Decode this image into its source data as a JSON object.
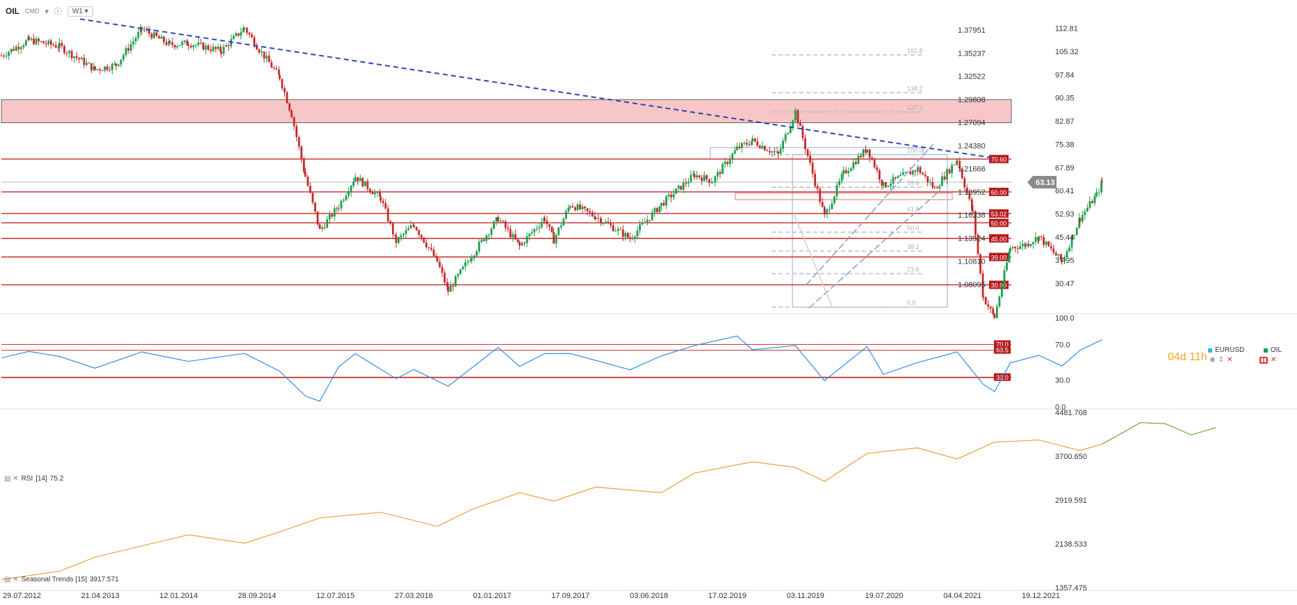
{
  "header": {
    "symbol": "OIL",
    "type": "CMD",
    "timeframe": "W1"
  },
  "timer": "04d 11h",
  "legend": {
    "eurusd": "EURUSD",
    "oil": "OIL",
    "eurusd_color": "#29b6f6",
    "oil_color": "#1b9e4b"
  },
  "colors": {
    "bull": "#1b9e4b",
    "bear": "#c62828",
    "level": "#c62828",
    "zone": "#f7c6c6",
    "trend": "#2d44b5",
    "channel": "#8fa3c8",
    "rsi": "#2f8fe6",
    "seasonal_past": "#f0a040",
    "seasonal_future": "#6aa832",
    "fib": "#bdbdbd"
  },
  "chart_data": [
    {
      "type": "candlestick",
      "title": "OIL",
      "ylim": [
        22.5,
        117
      ],
      "right_axis_ticks": [
        "112.81",
        "105.32",
        "97.84",
        "90.35",
        "82.87",
        "75.38",
        "67.89",
        "60.41",
        "52.93",
        "45.44",
        "37.95",
        "30.47"
      ],
      "left_axis_ticks_eurusd": [
        "1.37951",
        "1.35237",
        "1.32522",
        "1.29808",
        "1.27094",
        "1.24380",
        "1.21666",
        "1.18952",
        "1.16238",
        "1.13524",
        "1.10810",
        "1.08095"
      ],
      "x_ticks": [
        "29.07.2012",
        "21.04.2013",
        "12.01.2014",
        "28.09.2014",
        "12.07.2015",
        "27.03.2016",
        "01.01.2017",
        "17.09.2017",
        "03.06.2018",
        "17.02.2019",
        "03.11.2019",
        "19.07.2020",
        "04.04.2021",
        "19.12.2021"
      ],
      "last_price": "63.13",
      "resistance_zone": [
        82.3,
        89.8
      ],
      "horizontal_levels": [
        {
          "label": "70.60",
          "value": 70.6
        },
        {
          "label": "60.00",
          "value": 60.0
        },
        {
          "label": "53.02",
          "value": 53.02
        },
        {
          "label": "50.00",
          "value": 50.0
        },
        {
          "label": "45.00",
          "value": 45.0
        },
        {
          "label": "39.00",
          "value": 39.0
        },
        {
          "label": "30.00",
          "value": 30.0
        }
      ],
      "fib_levels": [
        {
          "label": "161.8",
          "value": 104.2
        },
        {
          "label": "138.2",
          "value": 92.0
        },
        {
          "label": "127.2",
          "value": 85.8
        },
        {
          "label": "100.0",
          "value": 72.0
        },
        {
          "label": "78.6",
          "value": 61.5
        },
        {
          "label": "61.8",
          "value": 53.0
        },
        {
          "label": "50.0",
          "value": 47.0
        },
        {
          "label": "38.2",
          "value": 40.9
        },
        {
          "label": "23.6",
          "value": 33.6
        },
        {
          "label": "0.0",
          "value": 22.8
        }
      ],
      "close_path": [
        {
          "date": "2012-07-29",
          "close": 104.0
        },
        {
          "date": "2012-10-15",
          "close": 109.0
        },
        {
          "date": "2013-01-10",
          "close": 107.0
        },
        {
          "date": "2013-04-21",
          "close": 99.5
        },
        {
          "date": "2013-06-20",
          "close": 101.0
        },
        {
          "date": "2013-09-01",
          "close": 112.5
        },
        {
          "date": "2013-11-20",
          "close": 107.5
        },
        {
          "date": "2014-01-12",
          "close": 108.0
        },
        {
          "date": "2014-04-15",
          "close": 105.5
        },
        {
          "date": "2014-06-20",
          "close": 113.0
        },
        {
          "date": "2014-08-01",
          "close": 106.0
        },
        {
          "date": "2014-09-28",
          "close": 97.0
        },
        {
          "date": "2014-11-01",
          "close": 85.0
        },
        {
          "date": "2014-12-10",
          "close": 65.0
        },
        {
          "date": "2015-01-20",
          "close": 47.5
        },
        {
          "date": "2015-03-15",
          "close": 55.5
        },
        {
          "date": "2015-05-01",
          "close": 65.0
        },
        {
          "date": "2015-07-12",
          "close": 58.0
        },
        {
          "date": "2015-08-25",
          "close": 44.0
        },
        {
          "date": "2015-10-15",
          "close": 49.5
        },
        {
          "date": "2015-12-20",
          "close": 37.5
        },
        {
          "date": "2016-01-20",
          "close": 28.0
        },
        {
          "date": "2016-03-27",
          "close": 39.5
        },
        {
          "date": "2016-06-10",
          "close": 51.5
        },
        {
          "date": "2016-08-10",
          "close": 42.5
        },
        {
          "date": "2016-10-20",
          "close": 51.5
        },
        {
          "date": "2016-11-15",
          "close": 44.5
        },
        {
          "date": "2017-01-01",
          "close": 56.0
        },
        {
          "date": "2017-03-15",
          "close": 52.0
        },
        {
          "date": "2017-06-20",
          "close": 45.0
        },
        {
          "date": "2017-09-17",
          "close": 56.0
        },
        {
          "date": "2017-12-20",
          "close": 65.5
        },
        {
          "date": "2018-02-10",
          "close": 63.5
        },
        {
          "date": "2018-04-20",
          "close": 74.0
        },
        {
          "date": "2018-06-03",
          "close": 76.5
        },
        {
          "date": "2018-08-15",
          "close": 72.0
        },
        {
          "date": "2018-10-03",
          "close": 86.0
        },
        {
          "date": "2018-12-25",
          "close": 52.0
        },
        {
          "date": "2019-02-17",
          "close": 66.0
        },
        {
          "date": "2019-04-25",
          "close": 74.0
        },
        {
          "date": "2019-06-10",
          "close": 62.0
        },
        {
          "date": "2019-09-16",
          "close": 67.5
        },
        {
          "date": "2019-11-03",
          "close": 61.0
        },
        {
          "date": "2020-01-06",
          "close": 70.5
        },
        {
          "date": "2020-02-20",
          "close": 53.0
        },
        {
          "date": "2020-03-20",
          "close": 26.0
        },
        {
          "date": "2020-04-21",
          "close": 19.5
        },
        {
          "date": "2020-06-05",
          "close": 42.0
        },
        {
          "date": "2020-07-19",
          "close": 43.0
        },
        {
          "date": "2020-08-25",
          "close": 45.5
        },
        {
          "date": "2020-10-30",
          "close": 37.5
        },
        {
          "date": "2020-12-20",
          "close": 51.5
        },
        {
          "date": "2021-02-05",
          "close": 59.0
        },
        {
          "date": "2021-02-21",
          "close": 63.13
        }
      ]
    },
    {
      "type": "line",
      "title": "RSI [14]",
      "label": "RSI",
      "period": "[14]",
      "last_value": "75.2",
      "ylim": [
        0,
        100
      ],
      "axis_ticks": [
        "100.0",
        "70.0",
        "30.0",
        "0.0"
      ],
      "levels": [
        {
          "label": "70.0",
          "value": 70.0
        },
        {
          "label": "63.5",
          "value": 63.5
        },
        {
          "label": "33.0",
          "value": 33.0
        }
      ],
      "points": [
        {
          "date": "2012-07-29",
          "rsi": 55
        },
        {
          "date": "2012-10-15",
          "rsi": 62
        },
        {
          "date": "2013-01-10",
          "rsi": 55
        },
        {
          "date": "2013-04-21",
          "rsi": 42
        },
        {
          "date": "2013-09-01",
          "rsi": 63
        },
        {
          "date": "2014-01-12",
          "rsi": 54
        },
        {
          "date": "2014-06-20",
          "rsi": 62
        },
        {
          "date": "2014-09-28",
          "rsi": 42
        },
        {
          "date": "2014-12-10",
          "rsi": 10
        },
        {
          "date": "2015-01-20",
          "rsi": 7
        },
        {
          "date": "2015-03-15",
          "rsi": 44
        },
        {
          "date": "2015-05-01",
          "rsi": 58
        },
        {
          "date": "2015-08-25",
          "rsi": 30
        },
        {
          "date": "2015-10-15",
          "rsi": 44
        },
        {
          "date": "2016-01-20",
          "rsi": 25
        },
        {
          "date": "2016-06-10",
          "rsi": 65
        },
        {
          "date": "2016-08-10",
          "rsi": 48
        },
        {
          "date": "2016-10-20",
          "rsi": 60
        },
        {
          "date": "2017-01-01",
          "rsi": 58
        },
        {
          "date": "2017-06-20",
          "rsi": 40
        },
        {
          "date": "2017-09-17",
          "rsi": 60
        },
        {
          "date": "2017-12-20",
          "rsi": 70
        },
        {
          "date": "2018-04-20",
          "rsi": 78
        },
        {
          "date": "2018-06-03",
          "rsi": 65
        },
        {
          "date": "2018-10-03",
          "rsi": 68
        },
        {
          "date": "2018-12-25",
          "rsi": 30
        },
        {
          "date": "2019-04-25",
          "rsi": 66
        },
        {
          "date": "2019-06-10",
          "rsi": 38
        },
        {
          "date": "2019-09-16",
          "rsi": 52
        },
        {
          "date": "2020-01-06",
          "rsi": 60
        },
        {
          "date": "2020-03-20",
          "rsi": 25
        },
        {
          "date": "2020-04-21",
          "rsi": 18
        },
        {
          "date": "2020-06-05",
          "rsi": 48
        },
        {
          "date": "2020-08-25",
          "rsi": 55
        },
        {
          "date": "2020-10-30",
          "rsi": 46
        },
        {
          "date": "2020-12-20",
          "rsi": 66
        },
        {
          "date": "2021-02-05",
          "rsi": 70
        },
        {
          "date": "2021-02-21",
          "rsi": 75.2
        }
      ]
    },
    {
      "type": "line",
      "title": "Seasonal Trends [15]",
      "label": "Seasonal  Trends [15]",
      "last_value": "3917.571",
      "ylim": [
        1357.475,
        4481.708
      ],
      "axis_ticks": [
        "4481.708",
        "3700.650",
        "2919.591",
        "2138.533",
        "1357.475"
      ],
      "points": [
        {
          "date": "2012-07-29",
          "value": 1500
        },
        {
          "date": "2013-01-10",
          "value": 1650
        },
        {
          "date": "2013-04-21",
          "value": 1900
        },
        {
          "date": "2013-09-01",
          "value": 2100
        },
        {
          "date": "2014-01-12",
          "value": 2300
        },
        {
          "date": "2014-06-20",
          "value": 2150
        },
        {
          "date": "2014-09-28",
          "value": 2350
        },
        {
          "date": "2015-01-20",
          "value": 2600
        },
        {
          "date": "2015-07-12",
          "value": 2700
        },
        {
          "date": "2015-12-20",
          "value": 2450
        },
        {
          "date": "2016-03-27",
          "value": 2750
        },
        {
          "date": "2016-08-10",
          "value": 3050
        },
        {
          "date": "2016-11-15",
          "value": 2900
        },
        {
          "date": "2017-03-15",
          "value": 3150
        },
        {
          "date": "2017-09-17",
          "value": 3050
        },
        {
          "date": "2017-12-20",
          "value": 3400
        },
        {
          "date": "2018-06-03",
          "value": 3600
        },
        {
          "date": "2018-10-03",
          "value": 3500
        },
        {
          "date": "2018-12-25",
          "value": 3250
        },
        {
          "date": "2019-04-25",
          "value": 3750
        },
        {
          "date": "2019-09-16",
          "value": 3850
        },
        {
          "date": "2020-01-06",
          "value": 3650
        },
        {
          "date": "2020-04-21",
          "value": 3950
        },
        {
          "date": "2020-08-25",
          "value": 3990
        },
        {
          "date": "2020-12-20",
          "value": 3800
        },
        {
          "date": "2021-02-21",
          "value": 3917.571
        }
      ],
      "future_points": [
        {
          "date": "2021-02-21",
          "value": 3917.571
        },
        {
          "date": "2021-04-15",
          "value": 4100
        },
        {
          "date": "2021-06-10",
          "value": 4300
        },
        {
          "date": "2021-08-20",
          "value": 4280
        },
        {
          "date": "2021-11-01",
          "value": 4080
        },
        {
          "date": "2022-01-10",
          "value": 4210
        }
      ]
    }
  ]
}
